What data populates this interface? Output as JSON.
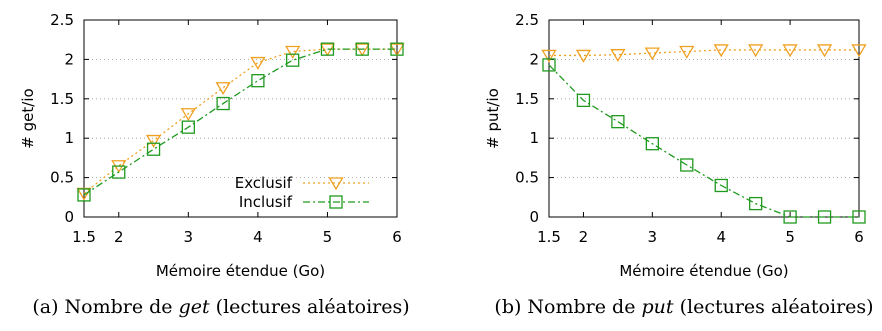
{
  "colors": {
    "exclusif": "#f0a020",
    "inclusif": "#1f9a1f",
    "grid": "#999999"
  },
  "chart_data": [
    {
      "type": "line",
      "caption_prefix": "(a) Nombre de ",
      "caption_italic": "get",
      "caption_suffix": " (lectures aléatoires)",
      "xlabel": "Mémoire étendue (Go)",
      "ylabel": "# get/io",
      "xlim": [
        1.5,
        6
      ],
      "ylim": [
        0,
        2.5
      ],
      "xticks": [
        "1.5",
        "2",
        "3",
        "4",
        "5",
        "6"
      ],
      "yticks": [
        "0",
        "0.5",
        "1",
        "1.5",
        "2",
        "2.5"
      ],
      "grid": true,
      "legend": "bottom-right",
      "series": [
        {
          "name": "Exclusif",
          "marker": "triangle-down",
          "style": "dotted",
          "x": [
            1.5,
            2,
            2.5,
            3,
            3.5,
            4,
            4.5,
            5,
            5.5,
            6
          ],
          "y": [
            0.3,
            0.65,
            0.97,
            1.31,
            1.64,
            1.96,
            2.1,
            2.13,
            2.13,
            2.13
          ]
        },
        {
          "name": "Inclusif",
          "marker": "square",
          "style": "dash-dot",
          "x": [
            1.5,
            2,
            2.5,
            3,
            3.5,
            4,
            4.5,
            5,
            5.5,
            6
          ],
          "y": [
            0.28,
            0.57,
            0.86,
            1.14,
            1.44,
            1.73,
            1.99,
            2.13,
            2.13,
            2.13
          ]
        }
      ]
    },
    {
      "type": "line",
      "caption_prefix": "(b) Nombre de ",
      "caption_italic": "put",
      "caption_suffix": " (lectures aléatoires)",
      "xlabel": "Mémoire étendue (Go)",
      "ylabel": "# put/io",
      "xlim": [
        1.5,
        6
      ],
      "ylim": [
        0,
        2.5
      ],
      "xticks": [
        "1.5",
        "2",
        "3",
        "4",
        "5",
        "6"
      ],
      "yticks": [
        "0",
        "0.5",
        "1",
        "1.5",
        "2",
        "2.5"
      ],
      "grid": true,
      "legend": "none",
      "series": [
        {
          "name": "Exclusif",
          "marker": "triangle-down",
          "style": "dotted",
          "x": [
            1.5,
            2,
            2.5,
            3,
            3.5,
            4,
            4.5,
            5,
            5.5,
            6
          ],
          "y": [
            2.05,
            2.05,
            2.06,
            2.08,
            2.1,
            2.12,
            2.12,
            2.12,
            2.12,
            2.12
          ]
        },
        {
          "name": "Inclusif",
          "marker": "square",
          "style": "dash-dot",
          "x": [
            1.5,
            2,
            2.5,
            3,
            3.5,
            4,
            4.5,
            5,
            5.5,
            6
          ],
          "y": [
            1.93,
            1.48,
            1.21,
            0.93,
            0.66,
            0.4,
            0.17,
            0,
            0,
            0
          ]
        }
      ]
    }
  ]
}
